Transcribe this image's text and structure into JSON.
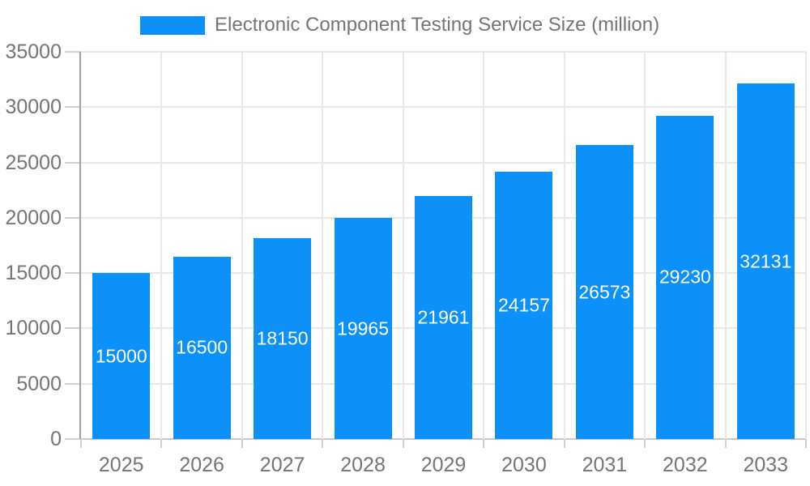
{
  "chart_data": {
    "type": "bar",
    "title": "Electronic Component Testing Service Size (million)",
    "legend": [
      "Electronic Component Testing Service Size (million)"
    ],
    "legend_position": "top",
    "categories": [
      "2025",
      "2026",
      "2027",
      "2028",
      "2029",
      "2030",
      "2031",
      "2032",
      "2033"
    ],
    "values": [
      15000,
      16500,
      18150,
      19965,
      21961,
      24157,
      26573,
      29230,
      32131
    ],
    "xlabel": "",
    "ylabel": "",
    "ylim": [
      0,
      35000
    ],
    "ytick_step": 5000,
    "ytick_labels": [
      "0",
      "5000",
      "10000",
      "15000",
      "20000",
      "25000",
      "30000",
      "35000"
    ],
    "grid": true,
    "value_label_position": "inside-center",
    "colors": {
      "bar": "#0C90FA",
      "grid": "#e8e8e8",
      "baseline": "#c9c9c9",
      "axis_line": "#a0a0a0",
      "tick": "#d0d0d0",
      "axis_label": "#747474",
      "value_label": "#ffffff",
      "background": "#ffffff"
    }
  }
}
